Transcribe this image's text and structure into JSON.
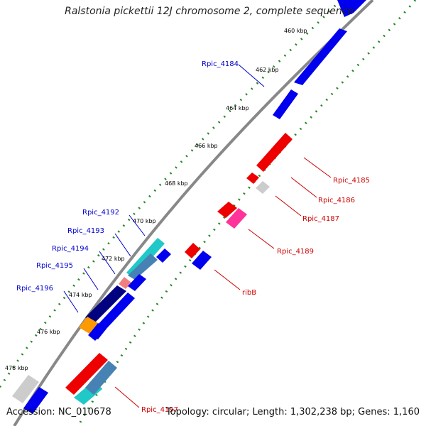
{
  "title": "Ralstonia pickettii 12J chromosome 2, complete sequence",
  "footer": {
    "accession": "Accession: NC_010678",
    "summary": "Topology: circular; Length: 1,302,238 bp; Genes: 1,160"
  },
  "colors": {
    "backbone": "#888888",
    "tick": "#228822",
    "blue_gene": "#0000ee",
    "red_gene": "#ee0000",
    "navy_gene": "#000080",
    "cyan_gene": "#20c8c8",
    "steel_gene": "#4682b4",
    "pink_gene": "#ff3399",
    "salmon_gene": "#f08080",
    "orange_gene": "#ff9900",
    "gray_gene": "#cccccc",
    "label_blue": "#0000cc",
    "label_red": "#cc0000"
  },
  "kbp_labels": [
    "460 kbp",
    "462 kbp",
    "464 kbp",
    "466 kbp",
    "468 kbp",
    "470 kbp",
    "472 kbp",
    "474 kbp",
    "476 kbp",
    "478 kbp"
  ],
  "gene_labels_left": [
    "Rpic_4184",
    "Rpic_4192",
    "Rpic_4193",
    "Rpic_4194",
    "Rpic_4195",
    "Rpic_4196"
  ],
  "gene_labels_right": [
    "Rpic_4185",
    "Rpic_4186",
    "Rpic_4187",
    "Rpic_4189",
    "ribB",
    "Rpic_4197"
  ]
}
